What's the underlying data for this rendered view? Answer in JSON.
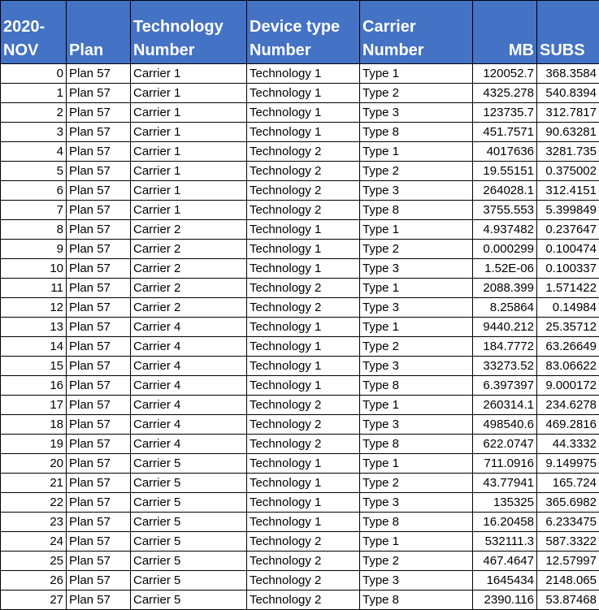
{
  "headers": {
    "index": "2020-\nNOV",
    "plan": "Plan",
    "col3": "Technology\nNumber",
    "col4": "Device type\nNumber",
    "col5": "Carrier\nNumber",
    "mb": "MB",
    "subs": "SUBS"
  },
  "rows": [
    {
      "idx": "0",
      "plan": "Plan 57",
      "carrier": "Carrier 1",
      "tech": "Technology 1",
      "type": "Type 1",
      "mb": "120052.7",
      "subs": "368.3584"
    },
    {
      "idx": "1",
      "plan": "Plan 57",
      "carrier": "Carrier 1",
      "tech": "Technology 1",
      "type": "Type 2",
      "mb": "4325.278",
      "subs": "540.8394"
    },
    {
      "idx": "2",
      "plan": "Plan 57",
      "carrier": "Carrier 1",
      "tech": "Technology 1",
      "type": "Type 3",
      "mb": "123735.7",
      "subs": "312.7817"
    },
    {
      "idx": "3",
      "plan": "Plan 57",
      "carrier": "Carrier 1",
      "tech": "Technology 1",
      "type": "Type 8",
      "mb": "451.7571",
      "subs": "90.63281"
    },
    {
      "idx": "4",
      "plan": "Plan 57",
      "carrier": "Carrier 1",
      "tech": "Technology 2",
      "type": "Type 1",
      "mb": "4017636",
      "subs": "3281.735"
    },
    {
      "idx": "5",
      "plan": "Plan 57",
      "carrier": "Carrier 1",
      "tech": "Technology 2",
      "type": "Type 2",
      "mb": "19.55151",
      "subs": "0.375002"
    },
    {
      "idx": "6",
      "plan": "Plan 57",
      "carrier": "Carrier 1",
      "tech": "Technology 2",
      "type": "Type 3",
      "mb": "264028.1",
      "subs": "312.4151"
    },
    {
      "idx": "7",
      "plan": "Plan 57",
      "carrier": "Carrier 1",
      "tech": "Technology 2",
      "type": "Type 8",
      "mb": "3755.553",
      "subs": "5.399849"
    },
    {
      "idx": "8",
      "plan": "Plan 57",
      "carrier": "Carrier 2",
      "tech": "Technology 1",
      "type": "Type 1",
      "mb": "4.937482",
      "subs": "0.237647"
    },
    {
      "idx": "9",
      "plan": "Plan 57",
      "carrier": "Carrier 2",
      "tech": "Technology 1",
      "type": "Type 2",
      "mb": "0.000299",
      "subs": "0.100474"
    },
    {
      "idx": "10",
      "plan": "Plan 57",
      "carrier": "Carrier 2",
      "tech": "Technology 1",
      "type": "Type 3",
      "mb": "1.52E-06",
      "subs": "0.100337"
    },
    {
      "idx": "11",
      "plan": "Plan 57",
      "carrier": "Carrier 2",
      "tech": "Technology 2",
      "type": "Type 1",
      "mb": "2088.399",
      "subs": "1.571422"
    },
    {
      "idx": "12",
      "plan": "Plan 57",
      "carrier": "Carrier 2",
      "tech": "Technology 2",
      "type": "Type 3",
      "mb": "8.25864",
      "subs": "0.14984"
    },
    {
      "idx": "13",
      "plan": "Plan 57",
      "carrier": "Carrier 4",
      "tech": "Technology 1",
      "type": "Type 1",
      "mb": "9440.212",
      "subs": "25.35712"
    },
    {
      "idx": "14",
      "plan": "Plan 57",
      "carrier": "Carrier 4",
      "tech": "Technology 1",
      "type": "Type 2",
      "mb": "184.7772",
      "subs": "63.26649"
    },
    {
      "idx": "15",
      "plan": "Plan 57",
      "carrier": "Carrier 4",
      "tech": "Technology 1",
      "type": "Type 3",
      "mb": "33273.52",
      "subs": "83.06622"
    },
    {
      "idx": "16",
      "plan": "Plan 57",
      "carrier": "Carrier 4",
      "tech": "Technology 1",
      "type": "Type 8",
      "mb": "6.397397",
      "subs": "9.000172"
    },
    {
      "idx": "17",
      "plan": "Plan 57",
      "carrier": "Carrier 4",
      "tech": "Technology 2",
      "type": "Type 1",
      "mb": "260314.1",
      "subs": "234.6278"
    },
    {
      "idx": "18",
      "plan": "Plan 57",
      "carrier": "Carrier 4",
      "tech": "Technology 2",
      "type": "Type 3",
      "mb": "498540.6",
      "subs": "469.2816"
    },
    {
      "idx": "19",
      "plan": "Plan 57",
      "carrier": "Carrier 4",
      "tech": "Technology 2",
      "type": "Type 8",
      "mb": "622.0747",
      "subs": "44.3332"
    },
    {
      "idx": "20",
      "plan": "Plan 57",
      "carrier": "Carrier 5",
      "tech": "Technology 1",
      "type": "Type 1",
      "mb": "711.0916",
      "subs": "9.149975"
    },
    {
      "idx": "21",
      "plan": "Plan 57",
      "carrier": "Carrier 5",
      "tech": "Technology 1",
      "type": "Type 2",
      "mb": "43.77941",
      "subs": "165.724"
    },
    {
      "idx": "22",
      "plan": "Plan 57",
      "carrier": "Carrier 5",
      "tech": "Technology 1",
      "type": "Type 3",
      "mb": "135325",
      "subs": "365.6982"
    },
    {
      "idx": "23",
      "plan": "Plan 57",
      "carrier": "Carrier 5",
      "tech": "Technology 1",
      "type": "Type 8",
      "mb": "16.20458",
      "subs": "6.233475"
    },
    {
      "idx": "24",
      "plan": "Plan 57",
      "carrier": "Carrier 5",
      "tech": "Technology 2",
      "type": "Type 1",
      "mb": "532111.3",
      "subs": "587.3322"
    },
    {
      "idx": "25",
      "plan": "Plan 57",
      "carrier": "Carrier 5",
      "tech": "Technology 2",
      "type": "Type 2",
      "mb": "467.4647",
      "subs": "12.57997"
    },
    {
      "idx": "26",
      "plan": "Plan 57",
      "carrier": "Carrier 5",
      "tech": "Technology 2",
      "type": "Type 3",
      "mb": "1645434",
      "subs": "2148.065"
    },
    {
      "idx": "27",
      "plan": "Plan 57",
      "carrier": "Carrier 5",
      "tech": "Technology 2",
      "type": "Type 8",
      "mb": "2390.116",
      "subs": "53.87468"
    }
  ],
  "colors": {
    "header_bg": "#4472c4",
    "header_text": "#ffffff",
    "grid": "#000000"
  }
}
